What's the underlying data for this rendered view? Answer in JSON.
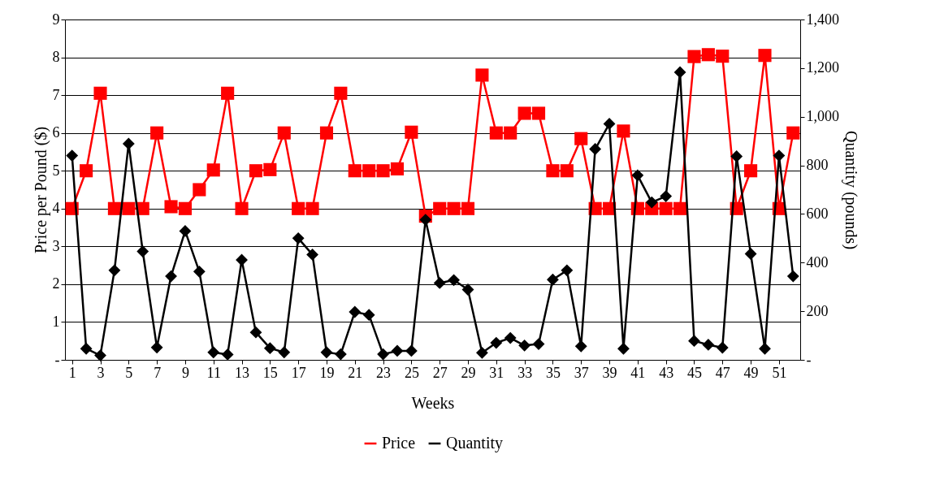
{
  "chart_data": {
    "type": "line",
    "xlabel": "Weeks",
    "ylabel": "Price per Pound ($)",
    "y2label": "Quantity (pounds)",
    "x": [
      1,
      2,
      3,
      4,
      5,
      6,
      7,
      8,
      9,
      10,
      11,
      12,
      13,
      14,
      15,
      16,
      17,
      18,
      19,
      20,
      21,
      22,
      23,
      24,
      25,
      26,
      27,
      28,
      29,
      30,
      31,
      32,
      33,
      34,
      35,
      36,
      37,
      38,
      39,
      40,
      41,
      42,
      43,
      44,
      45,
      46,
      47,
      48,
      49,
      50,
      51,
      52
    ],
    "xlim": [
      0.5,
      52.5
    ],
    "xticks": [
      1,
      3,
      5,
      7,
      9,
      11,
      13,
      15,
      17,
      19,
      21,
      23,
      25,
      27,
      29,
      31,
      33,
      35,
      37,
      39,
      41,
      43,
      45,
      47,
      49,
      51
    ],
    "series": [
      {
        "name": "Price",
        "color": "#ff0000",
        "marker": "square",
        "values": [
          4,
          5,
          7.05,
          4,
          4,
          4,
          6,
          4.05,
          4,
          4.5,
          5.02,
          7.05,
          4,
          5,
          5.03,
          6,
          4,
          4,
          6,
          7.05,
          5,
          5,
          5,
          5.05,
          6.02,
          3.8,
          4,
          4,
          4,
          7.53,
          6,
          6,
          6.52,
          6.52,
          5,
          5,
          5.85,
          4,
          4,
          6.05,
          4,
          4,
          4,
          4,
          8.02,
          8.07,
          8.03,
          4,
          5,
          8.05,
          4,
          6
        ]
      },
      {
        "name": "Quantity",
        "color": "#000000",
        "marker": "diamond",
        "axis": "y2",
        "values": [
          840,
          46,
          18,
          368,
          889,
          446,
          51,
          344,
          530,
          363,
          31,
          22,
          411,
          113,
          48,
          31,
          500,
          433,
          31,
          23,
          197,
          185,
          23,
          37,
          37,
          576,
          316,
          328,
          289,
          29,
          70,
          90,
          59,
          65,
          330,
          368,
          56,
          867,
          971,
          46,
          759,
          648,
          673,
          1183,
          78,
          62,
          50,
          837,
          436,
          46,
          840,
          344
        ]
      }
    ],
    "ylim": [
      0,
      9
    ],
    "yticks": [
      {
        "value": 0,
        "label": "-"
      },
      1,
      2,
      3,
      4,
      5,
      6,
      7,
      8,
      9
    ],
    "y2lim": [
      0,
      1400
    ],
    "y2ticks": [
      {
        "value": 0,
        "label": "-"
      },
      200,
      400,
      600,
      800,
      {
        "value": 1000,
        "label": "1,000"
      },
      {
        "value": 1200,
        "label": "1,200"
      },
      {
        "value": 1400,
        "label": "1,400"
      }
    ],
    "grid": "y",
    "legend": "bottom",
    "line_style": "solid"
  }
}
